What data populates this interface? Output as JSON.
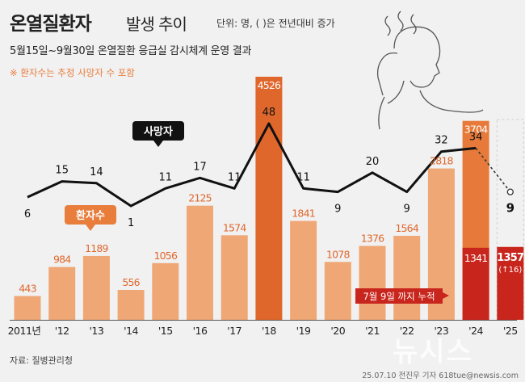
{
  "header": {
    "title_main": "온열질환자",
    "title_sub": "발생 추이",
    "unit": "단위: 명, ( )은 전년대비 증가",
    "subtitle": "5월15일~9월30일 온열질환 응급실 감시체계 운영 결과",
    "note": "※ 환자수는 추정 사망자 수 포함"
  },
  "footer": {
    "source": "자료: 질병관리청",
    "credit": "25.07.10 전진우 기자 618tue@newsis.com",
    "watermark": "뉴시스"
  },
  "colors": {
    "bar_light": "#f0a776",
    "bar_dark": "#e0672c",
    "bar_2024": "#e77a3a",
    "partial": "#c8251d",
    "line": "#111111"
  },
  "chart_data": {
    "type": "bar",
    "categories": [
      "2011년",
      "'12",
      "'13",
      "'14",
      "'15",
      "'16",
      "'17",
      "'18",
      "'19",
      "'20",
      "'21",
      "'22",
      "'23",
      "'24",
      "'25"
    ],
    "series": [
      {
        "name": "환자수",
        "values": [
          443,
          984,
          1189,
          556,
          1056,
          2125,
          1574,
          4526,
          1841,
          1078,
          1376,
          1564,
          2818,
          3704,
          null
        ],
        "labels": [
          "443",
          "984",
          "1189",
          "556",
          "1056",
          "2125",
          "1574",
          "4526",
          "1841",
          "1078",
          "1376",
          "1564",
          "2818",
          "3704",
          ""
        ]
      },
      {
        "name": "사망자",
        "values": [
          6,
          15,
          14,
          1,
          11,
          17,
          11,
          48,
          11,
          9,
          20,
          9,
          32,
          34,
          9
        ],
        "labels": [
          "6",
          "15",
          "14",
          "1",
          "11",
          "17",
          "11",
          "48",
          "11",
          "9",
          "20",
          "9",
          "32",
          "34",
          "9"
        ]
      },
      {
        "name": "7월 9일 까지 누적",
        "values": [
          null,
          null,
          null,
          null,
          null,
          null,
          null,
          null,
          null,
          null,
          null,
          null,
          null,
          1341,
          1357
        ],
        "labels": [
          "",
          "",
          "",
          "",
          "",
          "",
          "",
          "",
          "",
          "",
          "",
          "",
          "",
          "1341",
          "1357"
        ]
      }
    ],
    "increase_label_2025": "(↑16)",
    "callouts": {
      "patients": "환자수",
      "deaths": "사망자",
      "cumulative_label": "7월 9일 까지 누적"
    }
  }
}
